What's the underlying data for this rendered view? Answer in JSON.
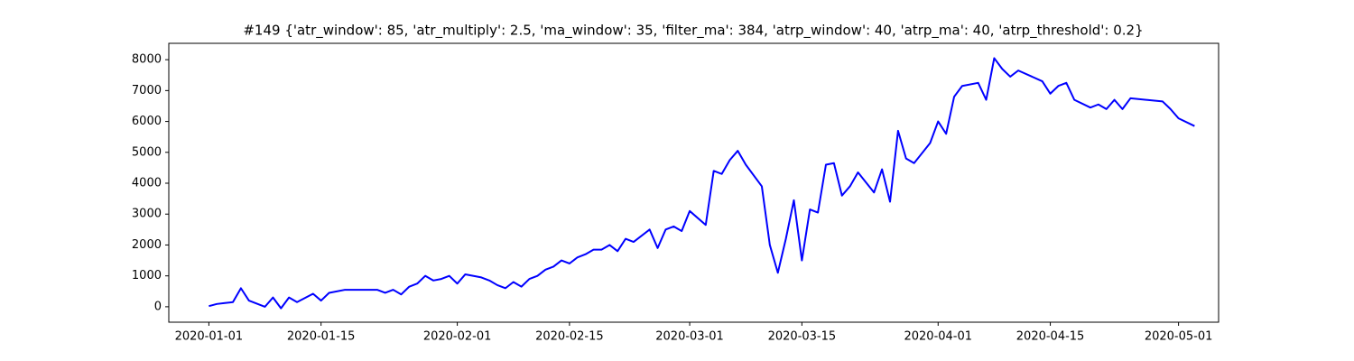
{
  "chart_data": {
    "type": "line",
    "title": "#149 {'atr_window': 85, 'atr_multiply': 2.5, 'ma_window': 35, 'filter_ma': 384, 'atrp_window': 40, 'atrp_ma': 40, 'atrp_threshold': 0.2}",
    "x": [
      "2020-01-01",
      "2020-01-02",
      "2020-01-03",
      "2020-01-04",
      "2020-01-05",
      "2020-01-06",
      "2020-01-08",
      "2020-01-09",
      "2020-01-10",
      "2020-01-11",
      "2020-01-12",
      "2020-01-14",
      "2020-01-15",
      "2020-01-16",
      "2020-01-18",
      "2020-01-22",
      "2020-01-23",
      "2020-01-24",
      "2020-01-25",
      "2020-01-26",
      "2020-01-27",
      "2020-01-28",
      "2020-01-29",
      "2020-01-30",
      "2020-01-31",
      "2020-02-01",
      "2020-02-02",
      "2020-02-04",
      "2020-02-05",
      "2020-02-06",
      "2020-02-07",
      "2020-02-08",
      "2020-02-09",
      "2020-02-10",
      "2020-02-11",
      "2020-02-12",
      "2020-02-13",
      "2020-02-14",
      "2020-02-15",
      "2020-02-16",
      "2020-02-17",
      "2020-02-18",
      "2020-02-19",
      "2020-02-20",
      "2020-02-21",
      "2020-02-22",
      "2020-02-23",
      "2020-02-25",
      "2020-02-26",
      "2020-02-27",
      "2020-02-28",
      "2020-02-29",
      "2020-03-01",
      "2020-03-03",
      "2020-03-04",
      "2020-03-05",
      "2020-03-06",
      "2020-03-07",
      "2020-03-08",
      "2020-03-10",
      "2020-03-11",
      "2020-03-12",
      "2020-03-13",
      "2020-03-14",
      "2020-03-15",
      "2020-03-16",
      "2020-03-17",
      "2020-03-18",
      "2020-03-19",
      "2020-03-20",
      "2020-03-21",
      "2020-03-22",
      "2020-03-24",
      "2020-03-25",
      "2020-03-26",
      "2020-03-27",
      "2020-03-28",
      "2020-03-29",
      "2020-03-31",
      "2020-04-01",
      "2020-04-02",
      "2020-04-03",
      "2020-04-04",
      "2020-04-06",
      "2020-04-07",
      "2020-04-08",
      "2020-04-09",
      "2020-04-10",
      "2020-04-11",
      "2020-04-14",
      "2020-04-15",
      "2020-04-16",
      "2020-04-17",
      "2020-04-18",
      "2020-04-20",
      "2020-04-21",
      "2020-04-22",
      "2020-04-23",
      "2020-04-24",
      "2020-04-25",
      "2020-04-29",
      "2020-04-30",
      "2020-05-01",
      "2020-05-03"
    ],
    "series": [
      {
        "color": "#0000ff",
        "values": [
          20,
          90,
          120,
          150,
          600,
          200,
          0,
          300,
          -50,
          300,
          150,
          420,
          200,
          450,
          550,
          550,
          450,
          550,
          400,
          650,
          750,
          1000,
          850,
          900,
          1000,
          750,
          1050,
          950,
          850,
          700,
          600,
          800,
          650,
          900,
          1000,
          1200,
          1300,
          1500,
          1400,
          1600,
          1700,
          1850,
          1850,
          2000,
          1800,
          2200,
          2100,
          2500,
          1900,
          2500,
          2600,
          2450,
          3100,
          2650,
          4400,
          4300,
          4750,
          5050,
          4600,
          3900,
          2000,
          1100,
          2200,
          3450,
          1500,
          3150,
          3050,
          4600,
          4650,
          3600,
          3900,
          4350,
          3700,
          4450,
          3400,
          5700,
          4800,
          4650,
          5300,
          6000,
          5600,
          6800,
          7150,
          7250,
          6700,
          8050,
          7700,
          7450,
          7650,
          7300,
          6900,
          7150,
          7250,
          6700,
          6450,
          6550,
          6400,
          6700,
          6400,
          6750,
          6650,
          6400,
          6100,
          5850
        ]
      }
    ],
    "xlim": [
      "2019-12-27",
      "2020-05-06"
    ],
    "xticks": [
      "2020-01-01",
      "2020-01-15",
      "2020-02-01",
      "2020-02-15",
      "2020-03-01",
      "2020-03-15",
      "2020-04-01",
      "2020-04-15",
      "2020-05-01"
    ],
    "ylim": [
      -500,
      8530
    ],
    "yticks": [
      0,
      1000,
      2000,
      3000,
      4000,
      5000,
      6000,
      7000,
      8000
    ],
    "grid": false
  }
}
